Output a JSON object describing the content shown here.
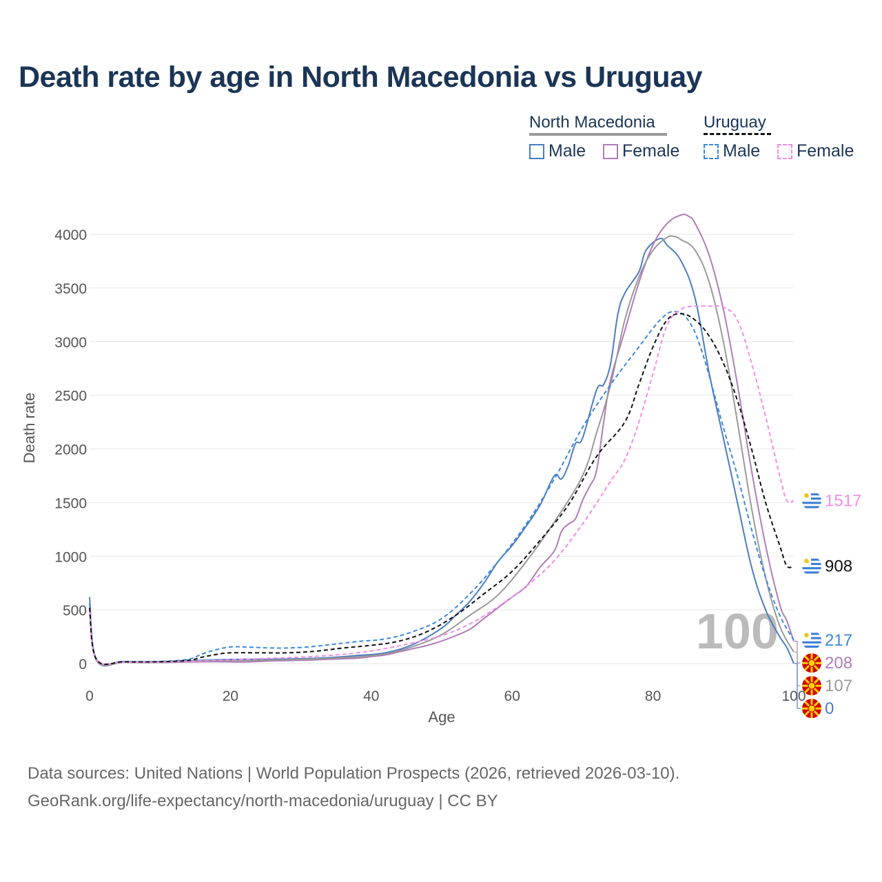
{
  "title": "Death rate by age in North Macedonia vs Uruguay",
  "legend": {
    "groups": [
      {
        "name": "North Macedonia",
        "color": "#999999",
        "dash": false
      },
      {
        "name": "Uruguay",
        "color": "#111111",
        "dash": true
      }
    ],
    "items": [
      {
        "label": "Male",
        "color": "#4a7cc0",
        "dash": false
      },
      {
        "label": "Female",
        "color": "#b07ab8",
        "dash": false
      },
      {
        "label": "Male",
        "color": "#3b87e0",
        "dash": true
      },
      {
        "label": "Female",
        "color": "#f58be8",
        "dash": true
      }
    ]
  },
  "current_age": "100",
  "footer": {
    "line1": "Data sources: United Nations | World Population Prospects (2026, retrieved 2026-03-10).",
    "line2": "GeoRank.org/life-expectancy/north-macedonia/uruguay | CC BY"
  },
  "chart_data": {
    "type": "line",
    "title": "Death rate by age in North Macedonia vs Uruguay",
    "xlabel": "Age",
    "ylabel": "Death rate",
    "xlim": [
      0,
      100
    ],
    "ylim": [
      0,
      4000
    ],
    "xticks": [
      0,
      20,
      40,
      60,
      80,
      100
    ],
    "yticks": [
      0,
      500,
      1000,
      1500,
      2000,
      2500,
      3000,
      3500,
      4000
    ],
    "grid": true,
    "series": [
      {
        "name": "North Macedonia Male",
        "color": "#4a7cc0",
        "dash": false,
        "end_value": "0",
        "flag": "north-macedonia",
        "points": [
          [
            0,
            620
          ],
          [
            1,
            30
          ],
          [
            5,
            15
          ],
          [
            10,
            15
          ],
          [
            14,
            25
          ],
          [
            18,
            35
          ],
          [
            22,
            40
          ],
          [
            26,
            40
          ],
          [
            30,
            45
          ],
          [
            34,
            55
          ],
          [
            38,
            75
          ],
          [
            42,
            100
          ],
          [
            46,
            180
          ],
          [
            50,
            330
          ],
          [
            52,
            450
          ],
          [
            54,
            580
          ],
          [
            56,
            750
          ],
          [
            58,
            950
          ],
          [
            60,
            1100
          ],
          [
            62,
            1280
          ],
          [
            64,
            1480
          ],
          [
            66,
            1750
          ],
          [
            67,
            1720
          ],
          [
            68,
            1850
          ],
          [
            69,
            2050
          ],
          [
            70,
            2100
          ],
          [
            72,
            2550
          ],
          [
            73,
            2600
          ],
          [
            74,
            2800
          ],
          [
            75,
            3250
          ],
          [
            76,
            3450
          ],
          [
            78,
            3650
          ],
          [
            79,
            3850
          ],
          [
            81,
            3960
          ],
          [
            82,
            3900
          ],
          [
            84,
            3750
          ],
          [
            86,
            3400
          ],
          [
            88,
            2700
          ],
          [
            90,
            2100
          ],
          [
            92,
            1500
          ],
          [
            94,
            900
          ],
          [
            96,
            500
          ],
          [
            98,
            250
          ],
          [
            99,
            150
          ],
          [
            100,
            0
          ]
        ]
      },
      {
        "name": "North Macedonia Female",
        "color": "#b07ab8",
        "dash": false,
        "end_value": "208",
        "flag": "north-macedonia",
        "points": [
          [
            0,
            520
          ],
          [
            1,
            25
          ],
          [
            5,
            12
          ],
          [
            10,
            10
          ],
          [
            14,
            15
          ],
          [
            18,
            18
          ],
          [
            22,
            15
          ],
          [
            26,
            25
          ],
          [
            30,
            30
          ],
          [
            34,
            40
          ],
          [
            38,
            50
          ],
          [
            40,
            65
          ],
          [
            42,
            80
          ],
          [
            44,
            110
          ],
          [
            46,
            140
          ],
          [
            48,
            170
          ],
          [
            50,
            210
          ],
          [
            52,
            260
          ],
          [
            54,
            320
          ],
          [
            56,
            420
          ],
          [
            58,
            520
          ],
          [
            60,
            620
          ],
          [
            62,
            720
          ],
          [
            64,
            900
          ],
          [
            66,
            1050
          ],
          [
            67,
            1230
          ],
          [
            68,
            1300
          ],
          [
            69,
            1350
          ],
          [
            70,
            1520
          ],
          [
            71,
            1650
          ],
          [
            72,
            1800
          ],
          [
            73,
            2250
          ],
          [
            74,
            2650
          ],
          [
            76,
            3100
          ],
          [
            78,
            3550
          ],
          [
            80,
            3900
          ],
          [
            82,
            4100
          ],
          [
            84,
            4180
          ],
          [
            85,
            4170
          ],
          [
            86,
            4100
          ],
          [
            88,
            3800
          ],
          [
            90,
            3300
          ],
          [
            92,
            2600
          ],
          [
            94,
            1800
          ],
          [
            96,
            1100
          ],
          [
            98,
            550
          ],
          [
            99,
            400
          ],
          [
            100,
            208
          ]
        ]
      },
      {
        "name": "North Macedonia Total",
        "color": "#999999",
        "dash": false,
        "end_value": "107",
        "flag": "north-macedonia",
        "points": [
          [
            0,
            570
          ],
          [
            1,
            28
          ],
          [
            5,
            13
          ],
          [
            10,
            12
          ],
          [
            14,
            20
          ],
          [
            18,
            27
          ],
          [
            22,
            28
          ],
          [
            26,
            32
          ],
          [
            30,
            38
          ],
          [
            34,
            48
          ],
          [
            38,
            63
          ],
          [
            42,
            90
          ],
          [
            46,
            160
          ],
          [
            50,
            270
          ],
          [
            54,
            450
          ],
          [
            58,
            640
          ],
          [
            62,
            950
          ],
          [
            66,
            1320
          ],
          [
            70,
            1750
          ],
          [
            72,
            2150
          ],
          [
            74,
            2600
          ],
          [
            76,
            3200
          ],
          [
            78,
            3600
          ],
          [
            80,
            3850
          ],
          [
            82,
            3970
          ],
          [
            83,
            3980
          ],
          [
            84,
            3950
          ],
          [
            86,
            3850
          ],
          [
            88,
            3550
          ],
          [
            90,
            3000
          ],
          [
            92,
            2250
          ],
          [
            94,
            1450
          ],
          [
            96,
            800
          ],
          [
            98,
            350
          ],
          [
            100,
            107
          ]
        ]
      },
      {
        "name": "Uruguay Male",
        "color": "#3b87e0",
        "dash": true,
        "end_value": "217",
        "flag": "uruguay",
        "points": [
          [
            0,
            560
          ],
          [
            1,
            40
          ],
          [
            5,
            20
          ],
          [
            10,
            20
          ],
          [
            14,
            40
          ],
          [
            16,
            90
          ],
          [
            18,
            130
          ],
          [
            20,
            155
          ],
          [
            22,
            155
          ],
          [
            26,
            145
          ],
          [
            30,
            150
          ],
          [
            34,
            175
          ],
          [
            38,
            205
          ],
          [
            42,
            230
          ],
          [
            46,
            300
          ],
          [
            50,
            420
          ],
          [
            54,
            650
          ],
          [
            58,
            950
          ],
          [
            62,
            1300
          ],
          [
            66,
            1720
          ],
          [
            70,
            2200
          ],
          [
            74,
            2600
          ],
          [
            78,
            2950
          ],
          [
            81,
            3200
          ],
          [
            83,
            3280
          ],
          [
            85,
            3200
          ],
          [
            87,
            2900
          ],
          [
            90,
            2200
          ],
          [
            92,
            1750
          ],
          [
            94,
            1250
          ],
          [
            96,
            800
          ],
          [
            98,
            450
          ],
          [
            100,
            217
          ]
        ]
      },
      {
        "name": "Uruguay Female",
        "color": "#f58be8",
        "dash": true,
        "end_value": "1517",
        "flag": "uruguay",
        "points": [
          [
            0,
            480
          ],
          [
            1,
            35
          ],
          [
            5,
            15
          ],
          [
            10,
            15
          ],
          [
            14,
            20
          ],
          [
            18,
            30
          ],
          [
            22,
            40
          ],
          [
            26,
            50
          ],
          [
            30,
            60
          ],
          [
            34,
            75
          ],
          [
            38,
            100
          ],
          [
            42,
            140
          ],
          [
            46,
            195
          ],
          [
            50,
            260
          ],
          [
            54,
            370
          ],
          [
            58,
            530
          ],
          [
            62,
            720
          ],
          [
            66,
            960
          ],
          [
            70,
            1300
          ],
          [
            74,
            1700
          ],
          [
            76,
            1900
          ],
          [
            78,
            2250
          ],
          [
            80,
            2700
          ],
          [
            82,
            3150
          ],
          [
            84,
            3300
          ],
          [
            86,
            3330
          ],
          [
            88,
            3330
          ],
          [
            90,
            3320
          ],
          [
            92,
            3200
          ],
          [
            94,
            2800
          ],
          [
            96,
            2300
          ],
          [
            98,
            1750
          ],
          [
            99,
            1520
          ],
          [
            100,
            1517
          ]
        ]
      },
      {
        "name": "Uruguay Total",
        "color": "#111111",
        "dash": true,
        "end_value": "908",
        "flag": "uruguay",
        "points": [
          [
            0,
            520
          ],
          [
            1,
            38
          ],
          [
            5,
            18
          ],
          [
            10,
            18
          ],
          [
            14,
            30
          ],
          [
            16,
            60
          ],
          [
            18,
            85
          ],
          [
            20,
            100
          ],
          [
            24,
            100
          ],
          [
            28,
            100
          ],
          [
            32,
            115
          ],
          [
            36,
            145
          ],
          [
            40,
            170
          ],
          [
            44,
            210
          ],
          [
            48,
            300
          ],
          [
            52,
            450
          ],
          [
            56,
            650
          ],
          [
            60,
            860
          ],
          [
            64,
            1150
          ],
          [
            68,
            1480
          ],
          [
            72,
            1930
          ],
          [
            76,
            2250
          ],
          [
            78,
            2600
          ],
          [
            80,
            2950
          ],
          [
            82,
            3200
          ],
          [
            84,
            3260
          ],
          [
            86,
            3200
          ],
          [
            88,
            3050
          ],
          [
            90,
            2800
          ],
          [
            92,
            2450
          ],
          [
            94,
            2000
          ],
          [
            96,
            1500
          ],
          [
            98,
            1100
          ],
          [
            99,
            910
          ],
          [
            100,
            908
          ]
        ]
      }
    ]
  }
}
